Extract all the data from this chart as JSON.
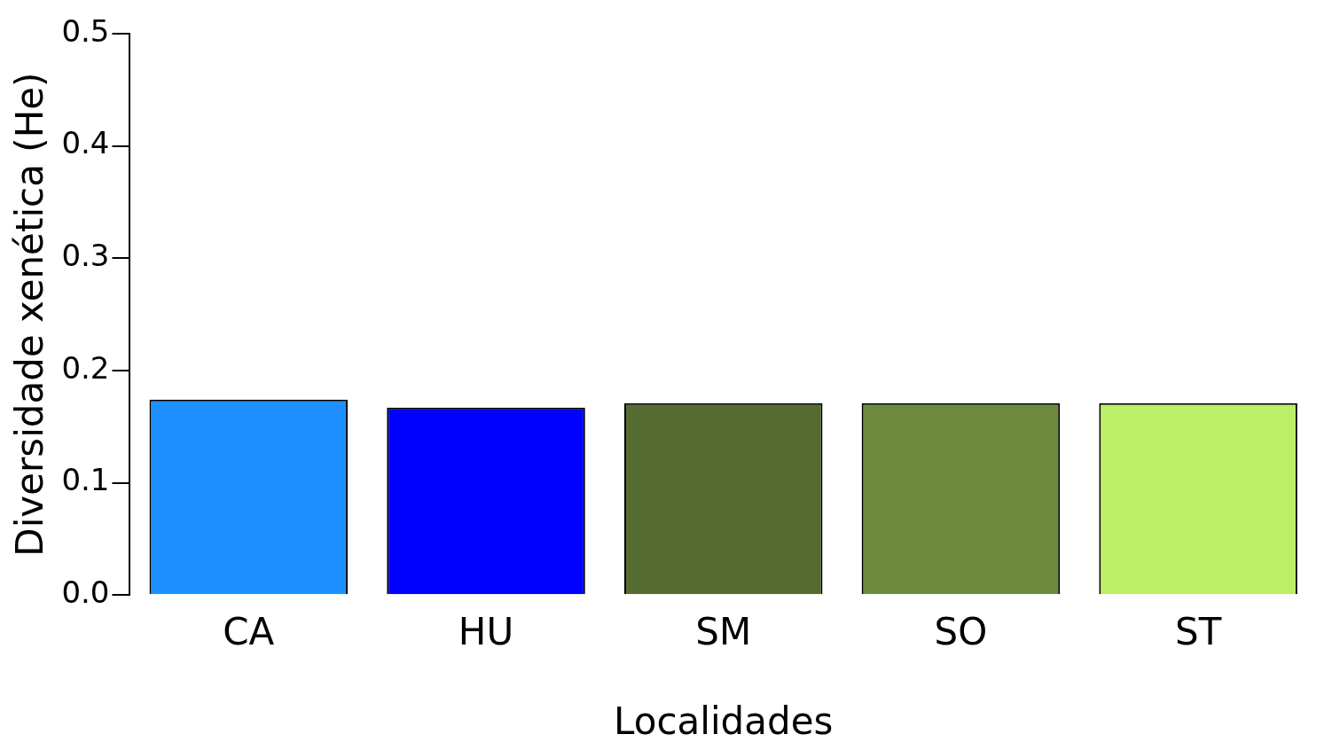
{
  "chart_data": {
    "type": "bar",
    "xlabel": "Localidades",
    "ylabel": "Diversidade xenética (He)",
    "categories": [
      "CA",
      "HU",
      "SM",
      "SO",
      "ST"
    ],
    "values": [
      0.174,
      0.167,
      0.171,
      0.171,
      0.171
    ],
    "colors": [
      "#1e90ff",
      "#0000ff",
      "#556b2f",
      "#6e8b3d",
      "#bcee68"
    ],
    "ylim": [
      0,
      0.5
    ],
    "yticks": [
      {
        "value": 0,
        "label": "0.0"
      },
      0.1,
      0.2,
      0.3,
      0.4,
      0.5
    ],
    "grid": false,
    "legend": false
  }
}
